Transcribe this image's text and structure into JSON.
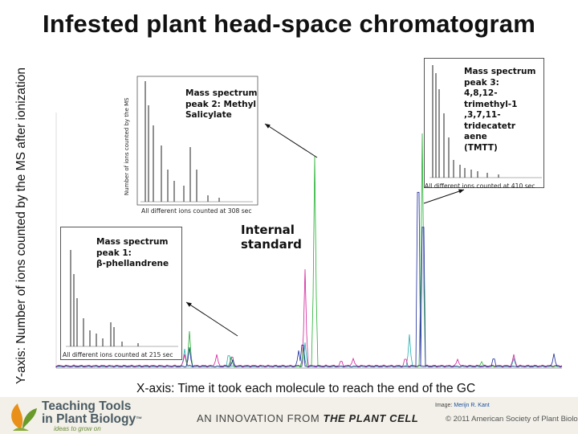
{
  "title": "Infested plant head-space chromatogram",
  "y_axis_label": "Y-axis: Number of ions counted by the MS after ionization",
  "x_axis_label": "X-axis: Time it took each molecule to reach the end of the GC",
  "internal_standard": "Internal standard",
  "insets": [
    {
      "title_lines": [
        "Mass spectrum",
        "peak 1:",
        "β-phellandrene"
      ],
      "caption": "All different ions counted at 215 sec"
    },
    {
      "title_lines": [
        "Mass spectrum",
        "peak 2: Methyl",
        "Salicylate"
      ],
      "caption": "All different ions counted at 308 sec",
      "ylabel": "Number of ions counted by the MS"
    },
    {
      "title_lines": [
        "Mass spectrum",
        "peak 3:",
        "4,8,12-trimethyl-1",
        ",3,7,11-tridecatetr",
        "aene",
        "(TMTT)"
      ],
      "caption": "All different ions counted at 410 sec"
    }
  ],
  "footer": {
    "logo_line1": "Teaching Tools",
    "logo_line2": "in Plant Biology",
    "logo_tm": "™",
    "logo_tagline": "ideas to grow on",
    "innovation_prefix": "AN INNOVATION FROM ",
    "innovation_journal": "THE PLANT CELL",
    "image_credit_prefix": "Image: ",
    "image_credit_name": "Merijn R. Kant",
    "copyright": "© 2011 American Society of Plant Biologists"
  },
  "colors": {
    "trace_blue": "#1a2a9a",
    "trace_green": "#22b030",
    "trace_magenta": "#d0209a",
    "trace_cyan": "#20b0b0",
    "callout_line": "#111111",
    "footer_bg": "#f2f0e8"
  }
}
